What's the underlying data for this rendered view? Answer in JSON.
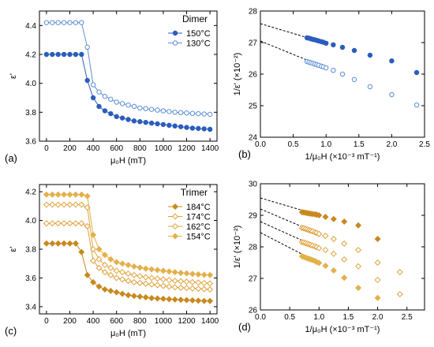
{
  "chart_data": [
    {
      "type": "line",
      "panel_label": "(a)",
      "legend_title": "Dimer",
      "legend_position": "top-right",
      "xlabel": "μ₀H (mT)",
      "ylabel": "ε'",
      "xlim": [
        -60,
        1460
      ],
      "ylim": [
        3.6,
        4.5
      ],
      "xticks": [
        0,
        200,
        400,
        600,
        800,
        1000,
        1200,
        1400
      ],
      "xtick_labels": [
        "0",
        "200",
        "400",
        "600",
        "800",
        "1000",
        "1200",
        "1400"
      ],
      "yticks": [
        3.6,
        3.8,
        4.0,
        4.2,
        4.4
      ],
      "ytick_labels": [
        "3.6",
        "3.8",
        "4.0",
        "4.2",
        "4.4"
      ],
      "x": [
        0,
        50,
        100,
        150,
        200,
        250,
        300,
        350,
        400,
        450,
        500,
        550,
        600,
        650,
        700,
        750,
        800,
        850,
        900,
        950,
        1000,
        1050,
        1100,
        1150,
        1200,
        1250,
        1300,
        1350,
        1400
      ],
      "series": [
        {
          "name": "150°C",
          "marker": "filled-circle",
          "color": "#2b5dbd",
          "values": [
            4.2,
            4.2,
            4.2,
            4.2,
            4.2,
            4.2,
            4.2,
            4.02,
            3.9,
            3.84,
            3.81,
            3.79,
            3.77,
            3.76,
            3.75,
            3.74,
            3.735,
            3.73,
            3.725,
            3.72,
            3.715,
            3.71,
            3.705,
            3.7,
            3.695,
            3.69,
            3.688,
            3.685,
            3.682
          ]
        },
        {
          "name": "130°C",
          "marker": "open-circle",
          "color": "#5b8fd6",
          "values": [
            4.42,
            4.42,
            4.42,
            4.42,
            4.42,
            4.42,
            4.42,
            4.25,
            3.99,
            3.94,
            3.91,
            3.89,
            3.87,
            3.86,
            3.85,
            3.84,
            3.83,
            3.825,
            3.82,
            3.815,
            3.81,
            3.805,
            3.8,
            3.798,
            3.795,
            3.792,
            3.79,
            3.788,
            3.786
          ]
        }
      ]
    },
    {
      "type": "scatter",
      "panel_label": "(b)",
      "xlabel": "1/μ₀H (×10⁻³ mT⁻¹)",
      "ylabel": "1/ε' (×10⁻²)",
      "xlim": [
        0,
        2.5
      ],
      "ylim": [
        24,
        28
      ],
      "xticks": [
        0,
        0.5,
        1.0,
        1.5,
        2.0,
        2.5
      ],
      "xtick_labels": [
        "0.0",
        "0.5",
        "1.0",
        "1.5",
        "2.0",
        "2.5"
      ],
      "yticks": [
        24,
        25,
        26,
        27,
        28
      ],
      "ytick_labels": [
        "24",
        "25",
        "26",
        "27",
        "28"
      ],
      "series": [
        {
          "name": "150°C",
          "marker": "filled-circle",
          "color": "#2b5dbd",
          "x": [
            0.71,
            0.74,
            0.77,
            0.8,
            0.83,
            0.86,
            0.89,
            0.93,
            0.96,
            1.0,
            1.11,
            1.25,
            1.43,
            1.67,
            2.0,
            2.38
          ],
          "y": [
            27.15,
            27.14,
            27.12,
            27.1,
            27.09,
            27.07,
            27.05,
            27.03,
            27.01,
            26.98,
            26.93,
            26.85,
            26.75,
            26.6,
            26.42,
            26.05
          ],
          "fit_line": {
            "x": [
              0,
              1.0
            ],
            "y": [
              27.6,
              26.98
            ]
          }
        },
        {
          "name": "130°C",
          "marker": "open-circle",
          "color": "#5b8fd6",
          "x": [
            0.71,
            0.74,
            0.77,
            0.8,
            0.83,
            0.86,
            0.89,
            0.93,
            0.96,
            1.0,
            1.11,
            1.25,
            1.43,
            1.67,
            2.0,
            2.38
          ],
          "y": [
            26.4,
            26.38,
            26.36,
            26.34,
            26.32,
            26.3,
            26.28,
            26.25,
            26.23,
            26.2,
            26.12,
            26.0,
            25.83,
            25.6,
            25.35,
            25.02
          ],
          "fit_line": {
            "x": [
              0,
              1.0
            ],
            "y": [
              27.05,
              26.2
            ]
          }
        }
      ]
    },
    {
      "type": "line",
      "panel_label": "(c)",
      "legend_title": "Trimer",
      "legend_position": "top-right",
      "xlabel": "μ₀H (mT)",
      "ylabel": "ε'",
      "xlim": [
        -60,
        1460
      ],
      "ylim": [
        3.35,
        4.25
      ],
      "xticks": [
        0,
        200,
        400,
        600,
        800,
        1000,
        1200,
        1400
      ],
      "xtick_labels": [
        "0",
        "200",
        "400",
        "600",
        "800",
        "1000",
        "1200",
        "1400"
      ],
      "yticks": [
        3.4,
        3.6,
        3.8,
        4.0,
        4.2
      ],
      "ytick_labels": [
        "3.4",
        "3.6",
        "3.8",
        "4.0",
        "4.2"
      ],
      "x": [
        0,
        50,
        100,
        150,
        200,
        250,
        300,
        350,
        400,
        450,
        500,
        550,
        600,
        650,
        700,
        750,
        800,
        850,
        900,
        950,
        1000,
        1050,
        1100,
        1150,
        1200,
        1250,
        1300,
        1350,
        1400
      ],
      "series": [
        {
          "name": "184°C",
          "marker": "filled-diamond",
          "color": "#c8891f",
          "values": [
            3.84,
            3.84,
            3.84,
            3.84,
            3.84,
            3.84,
            3.78,
            3.62,
            3.57,
            3.54,
            3.52,
            3.51,
            3.5,
            3.49,
            3.48,
            3.475,
            3.47,
            3.465,
            3.46,
            3.457,
            3.455,
            3.452,
            3.45,
            3.448,
            3.446,
            3.444,
            3.442,
            3.44,
            3.44
          ]
        },
        {
          "name": "174°C",
          "marker": "open-diamond",
          "color": "#dda03a",
          "values": [
            3.98,
            3.98,
            3.98,
            3.98,
            3.98,
            3.98,
            3.98,
            3.96,
            3.72,
            3.67,
            3.64,
            3.62,
            3.6,
            3.59,
            3.58,
            3.57,
            3.565,
            3.56,
            3.555,
            3.55,
            3.545,
            3.54,
            3.535,
            3.532,
            3.53,
            3.527,
            3.525,
            3.522,
            3.52
          ]
        },
        {
          "name": "162°C",
          "marker": "open-diamond",
          "color": "#e0a43e",
          "values": [
            4.11,
            4.11,
            4.11,
            4.11,
            4.11,
            4.11,
            4.11,
            4.09,
            3.8,
            3.73,
            3.69,
            3.67,
            3.65,
            3.64,
            3.63,
            3.62,
            3.612,
            3.605,
            3.6,
            3.595,
            3.59,
            3.585,
            3.58,
            3.577,
            3.574,
            3.571,
            3.568,
            3.565,
            3.562
          ]
        },
        {
          "name": "154°C",
          "marker": "filled-diamond",
          "color": "#e3b04c",
          "values": [
            4.18,
            4.18,
            4.18,
            4.18,
            4.18,
            4.18,
            4.18,
            4.17,
            3.9,
            3.8,
            3.76,
            3.73,
            3.71,
            3.7,
            3.69,
            3.68,
            3.672,
            3.665,
            3.66,
            3.655,
            3.65,
            3.645,
            3.64,
            3.635,
            3.632,
            3.628,
            3.625,
            3.622,
            3.62
          ]
        }
      ]
    },
    {
      "type": "scatter",
      "panel_label": "(d)",
      "xlabel": "1/μ₀H (×10⁻³ mT⁻¹)",
      "ylabel": "1/ε' (×10⁻²)",
      "xlim": [
        0,
        2.8
      ],
      "ylim": [
        26,
        30
      ],
      "xticks": [
        0,
        0.5,
        1.0,
        1.5,
        2.0,
        2.5
      ],
      "xtick_labels": [
        "0.0",
        "0.5",
        "1.0",
        "1.5",
        "2.0",
        "2.5"
      ],
      "yticks": [
        26,
        27,
        28,
        29,
        30
      ],
      "ytick_labels": [
        "26",
        "27",
        "28",
        "29",
        "30"
      ],
      "series": [
        {
          "name": "184°C",
          "marker": "filled-diamond",
          "color": "#c8891f",
          "x": [
            0.71,
            0.74,
            0.77,
            0.8,
            0.83,
            0.86,
            0.89,
            0.93,
            0.96,
            1.0,
            1.11,
            1.25,
            1.43,
            1.67,
            2.0
          ],
          "y": [
            29.1,
            29.09,
            29.08,
            29.07,
            29.06,
            29.05,
            29.04,
            29.03,
            29.02,
            29.0,
            28.95,
            28.88,
            28.8,
            28.68,
            28.25
          ],
          "fit_line": {
            "x": [
              0,
              1.0
            ],
            "y": [
              29.55,
              29.0
            ]
          }
        },
        {
          "name": "174°C",
          "marker": "open-diamond",
          "color": "#dda03a",
          "x": [
            0.71,
            0.74,
            0.77,
            0.8,
            0.83,
            0.86,
            0.89,
            0.93,
            0.96,
            1.0,
            1.11,
            1.25,
            1.43,
            1.67,
            2.0,
            2.38
          ],
          "y": [
            28.6,
            28.59,
            28.57,
            28.55,
            28.53,
            28.51,
            28.49,
            28.46,
            28.44,
            28.41,
            28.35,
            28.25,
            28.1,
            27.9,
            27.5,
            27.2
          ],
          "fit_line": {
            "x": [
              0,
              1.0
            ],
            "y": [
              29.2,
              28.41
            ]
          }
        },
        {
          "name": "162°C",
          "marker": "open-diamond",
          "color": "#e0a43e",
          "x": [
            0.71,
            0.74,
            0.77,
            0.8,
            0.83,
            0.86,
            0.89,
            0.93,
            0.96,
            1.0,
            1.11,
            1.25,
            1.43,
            1.67,
            2.0,
            2.38
          ],
          "y": [
            28.15,
            28.14,
            28.12,
            28.1,
            28.08,
            28.06,
            28.04,
            28.01,
            27.99,
            27.96,
            27.9,
            27.78,
            27.6,
            27.38,
            26.95,
            26.5
          ],
          "fit_line": {
            "x": [
              0,
              1.0
            ],
            "y": [
              28.8,
              27.96
            ]
          }
        },
        {
          "name": "154°C",
          "marker": "filled-diamond",
          "color": "#e3b04c",
          "x": [
            0.71,
            0.74,
            0.77,
            0.8,
            0.83,
            0.86,
            0.89,
            0.93,
            0.96,
            1.0,
            1.11,
            1.25,
            1.43,
            1.67,
            2.0
          ],
          "y": [
            27.7,
            27.68,
            27.66,
            27.64,
            27.62,
            27.6,
            27.58,
            27.55,
            27.52,
            27.49,
            27.4,
            27.25,
            27.02,
            26.7,
            26.38
          ],
          "fit_line": {
            "x": [
              0,
              1.0
            ],
            "y": [
              28.45,
              27.49
            ]
          }
        }
      ]
    }
  ]
}
